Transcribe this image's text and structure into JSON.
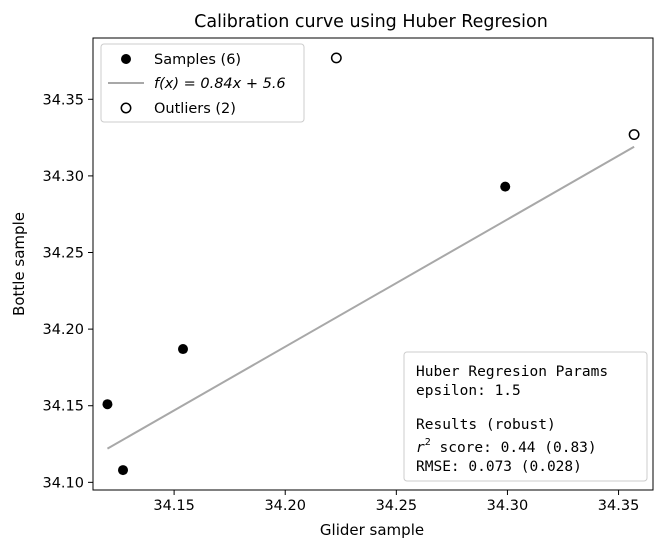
{
  "chart_data": {
    "type": "scatter",
    "title": "Calibration curve using Huber Regresion",
    "xlabel": "Glider sample",
    "ylabel": "Bottle sample",
    "xlim": [
      34.1135,
      34.3655
    ],
    "ylim": [
      34.095,
      34.39
    ],
    "xticks": [
      34.15,
      34.2,
      34.25,
      34.3,
      34.35
    ],
    "xtick_labels": [
      "34.15",
      "34.20",
      "34.25",
      "34.30",
      "34.35"
    ],
    "yticks": [
      34.1,
      34.15,
      34.2,
      34.25,
      34.3,
      34.35
    ],
    "ytick_labels": [
      "34.10",
      "34.15",
      "34.20",
      "34.25",
      "34.30",
      "34.35"
    ],
    "grid": false,
    "legend_placement": "upper-left",
    "series": [
      {
        "name": "Samples (6)",
        "marker": "filled-circle",
        "color": "#000000",
        "points": [
          {
            "x": 34.12,
            "y": 34.151
          },
          {
            "x": 34.127,
            "y": 34.108
          },
          {
            "x": 34.154,
            "y": 34.187
          },
          {
            "x": 34.299,
            "y": 34.293
          },
          {
            "x": 34.223,
            "y": 34.377
          },
          {
            "x": 34.357,
            "y": 34.327
          }
        ]
      },
      {
        "name": "Outliers (2)",
        "marker": "open-circle",
        "color": "#000000",
        "points": [
          {
            "x": 34.223,
            "y": 34.377
          },
          {
            "x": 34.357,
            "y": 34.327
          }
        ]
      }
    ],
    "fit_line": {
      "name": "f(x) = 0.84x + 5.6",
      "color": "#a8a8a8",
      "x": [
        34.12,
        34.357
      ],
      "y": [
        34.122,
        34.319
      ]
    },
    "legend": {
      "items": [
        {
          "kind": "filled-circle",
          "prefix": "Samples (6)",
          "math": "",
          "suffix": ""
        },
        {
          "kind": "line",
          "prefix": "",
          "math": "f(x) = 0.84x + 5.6",
          "suffix": ""
        },
        {
          "kind": "open-circle",
          "prefix": "Outliers (2)",
          "math": "",
          "suffix": ""
        }
      ]
    },
    "annotation": {
      "params_title": "Huber Regresion Params",
      "epsilon_line": "epsilon: 1.5",
      "results_title": "Results (robust)",
      "r2_symbol": "r",
      "r2_superscript": "2",
      "r2_value": " score: 0.44 (0.83)",
      "rmse_line": "RMSE: 0.073 (0.028)"
    }
  }
}
